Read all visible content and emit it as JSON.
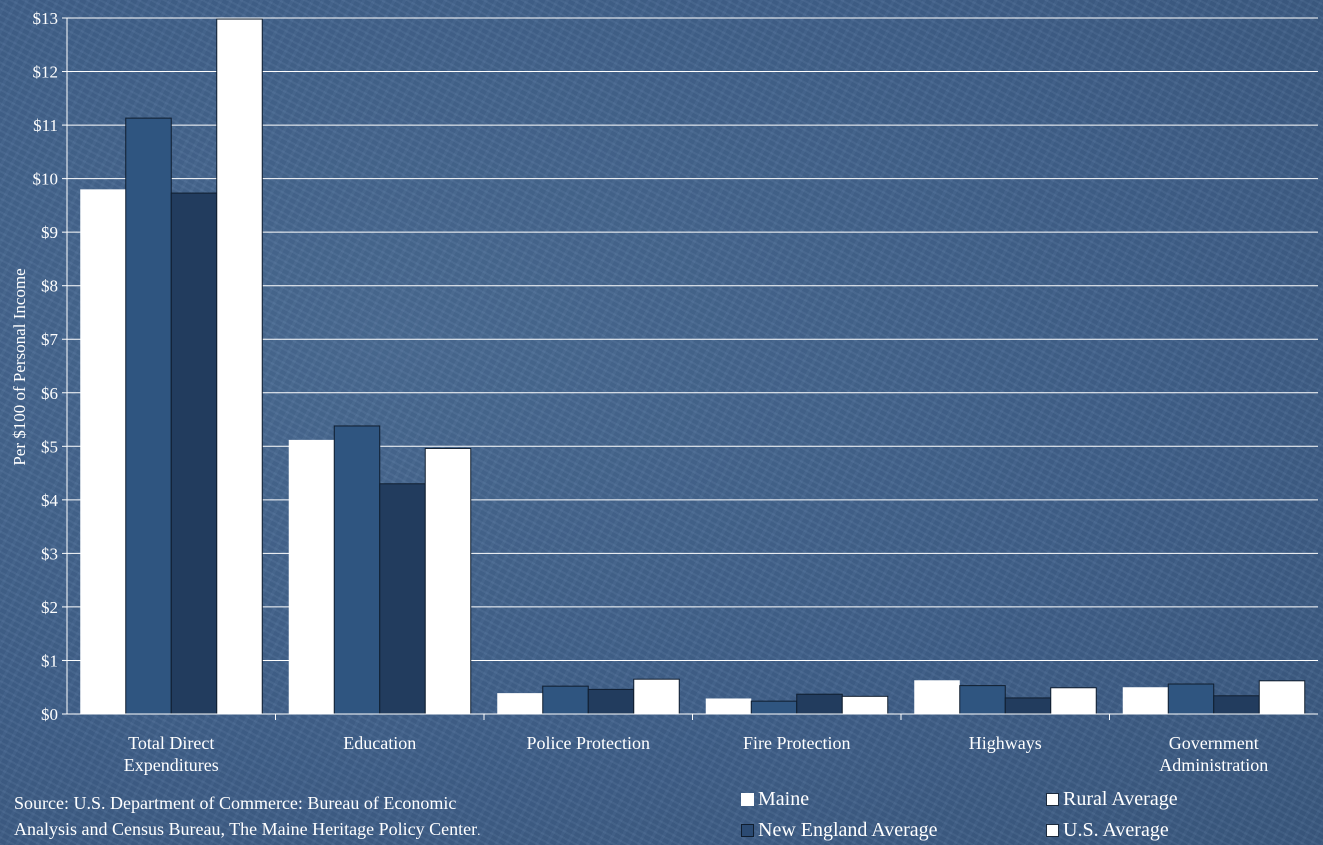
{
  "chart_data": {
    "type": "bar",
    "title": "",
    "xlabel": "",
    "ylabel": "Per $100 of Personal Income",
    "ylim": [
      0,
      13
    ],
    "yticks": [
      "$0",
      "$1",
      "$2",
      "$3",
      "$4",
      "$5",
      "$6",
      "$7",
      "$8",
      "$9",
      "$10",
      "$11",
      "$12",
      "$13"
    ],
    "categories": [
      [
        "Total Direct",
        "Expenditures"
      ],
      [
        "Education"
      ],
      [
        "Police Protection"
      ],
      [
        "Fire Protection"
      ],
      [
        "Highways"
      ],
      [
        "Government",
        "Administration"
      ]
    ],
    "series": [
      {
        "name": "Maine",
        "color": "#ffffff",
        "values": [
          9.8,
          5.12,
          0.39,
          0.29,
          0.63,
          0.5
        ]
      },
      {
        "name": "Rural Average",
        "color": "#2f5580",
        "values": [
          11.13,
          5.38,
          0.52,
          0.24,
          0.53,
          0.56
        ]
      },
      {
        "name": "New England Average",
        "color": "#223c5e",
        "values": [
          9.73,
          4.3,
          0.46,
          0.37,
          0.3,
          0.34
        ]
      },
      {
        "name": "U.S. Average",
        "color": "#ffffff",
        "values": [
          12.98,
          4.96,
          0.65,
          0.33,
          0.49,
          0.62
        ]
      }
    ],
    "grid": true,
    "legend_position": "bottom-right"
  },
  "source_line1": "Source: U.S. Department of Commerce: Bureau of Economic",
  "source_line2": "Analysis and Census Bureau, The Maine Heritage Policy Center",
  "source_period": ".",
  "legend": {
    "maine": "Maine",
    "rural": "Rural Average",
    "new_england": "New England Average",
    "us": "U.S. Average"
  }
}
